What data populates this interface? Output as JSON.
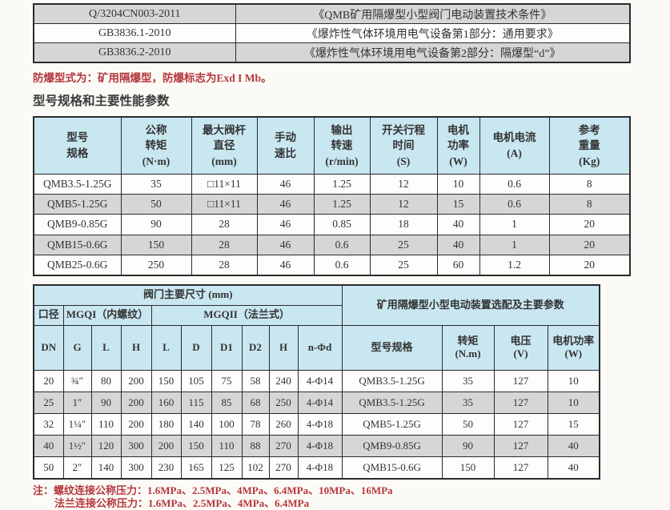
{
  "page": {
    "colors": {
      "header_blue": "#c9e7f1",
      "row_gray": "#d6d6d6",
      "accent_red": "#b5373c",
      "border": "#2b2b2b"
    }
  },
  "standards_table": {
    "rows": [
      {
        "code": "Q/3204CN003-2011",
        "title": "《QMB矿用隔爆型小型阀门电动装置技术条件》"
      },
      {
        "code": "GB3836.1-2010",
        "title": "《爆炸性气体环境用电气设备第1部分：通用要求》"
      },
      {
        "code": "GB3836.2-2010",
        "title": "《爆炸性气体环境用电气设备第2部分：隔爆型“d”》"
      }
    ]
  },
  "explosion_note": "防爆型式为：矿用隔爆型，防爆标志为Exd I  Mb。",
  "section_heading": "型号规格和主要性能参数",
  "performance_table": {
    "headers": [
      "型号\n规格",
      "公称\n转矩\n(N·m)",
      "最大阀杆\n直径\n(mm)",
      "手动\n速比",
      "输出\n转速\n(r/min)",
      "开关行程\n时间\n(S)",
      "电机\n功率\n(W)",
      "电机电流\n(A)",
      "参考\n重量\n(Kg)"
    ],
    "rows": [
      [
        "QMB3.5-1.25G",
        "35",
        "□11×11",
        "46",
        "1.25",
        "12",
        "10",
        "0.6",
        "8"
      ],
      [
        "QMB5-1.25G",
        "50",
        "□11×11",
        "46",
        "1.25",
        "12",
        "15",
        "0.6",
        "8"
      ],
      [
        "QMB9-0.85G",
        "90",
        "28",
        "46",
        "0.85",
        "18",
        "40",
        "1",
        "20"
      ],
      [
        "QMB15-0.6G",
        "150",
        "28",
        "46",
        "0.6",
        "25",
        "40",
        "1",
        "20"
      ],
      [
        "QMB25-0.6G",
        "250",
        "28",
        "46",
        "0.6",
        "25",
        "60",
        "1.2",
        "20"
      ]
    ]
  },
  "dimensions_table": {
    "valve_dims_title": "阀门主要尺寸 (mm)",
    "selection_title": "矿用隔爆型小型电动装置选配及主要参数",
    "bore_label": "口径",
    "mgqi_label": "MGQI（内螺纹）",
    "mgqii_label": "MGQII（法兰式）",
    "col_headers": [
      "DN",
      "G",
      "L",
      "H",
      "L",
      "D",
      "D1",
      "D2",
      "H",
      "n-Φd",
      "型号规格",
      "转矩\n(N.m)",
      "电压\n(V)",
      "电机功率\n(W)"
    ],
    "rows": [
      [
        "20",
        "¾″",
        "80",
        "200",
        "150",
        "105",
        "75",
        "58",
        "240",
        "4-Φ14",
        "QMB3.5-1.25G",
        "35",
        "127",
        "10"
      ],
      [
        "25",
        "1″",
        "90",
        "200",
        "160",
        "115",
        "85",
        "68",
        "250",
        "4-Φ14",
        "QMB3.5-1.25G",
        "35",
        "127",
        "10"
      ],
      [
        "32",
        "1¼″",
        "110",
        "200",
        "180",
        "140",
        "100",
        "78",
        "260",
        "4-Φ18",
        "QMB5-1.25G",
        "50",
        "127",
        "15"
      ],
      [
        "40",
        "1½″",
        "120",
        "300",
        "200",
        "150",
        "110",
        "88",
        "270",
        "4-Φ18",
        "QMB9-0.85G",
        "90",
        "127",
        "40"
      ],
      [
        "50",
        "2″",
        "140",
        "300",
        "230",
        "165",
        "125",
        "102",
        "270",
        "4-Φ18",
        "QMB15-0.6G",
        "150",
        "127",
        "40"
      ]
    ]
  },
  "notes": {
    "prefix": "注：",
    "line1": "螺纹连接公称压力：1.6MPa、2.5MPa、4MPa、6.4MPa、10MPa、16MPa",
    "line2": "法兰连接公称压力：1.6MPa、2.5MPa、4MPa、6.4MPa"
  }
}
